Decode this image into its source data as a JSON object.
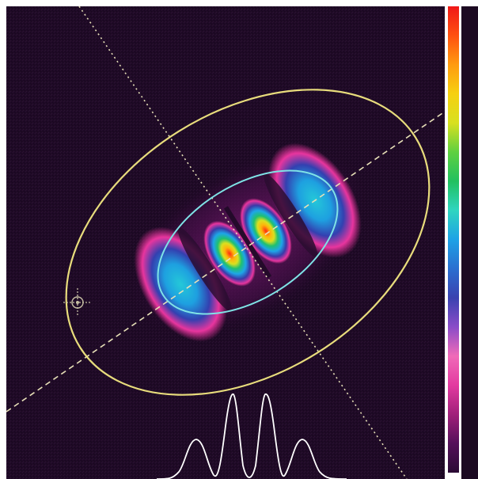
{
  "window": {
    "title": ""
  },
  "colors": {
    "background": "#1f0a26",
    "ellipse_outer": "#e8dc7c",
    "ellipse_inner": "#7fe3e6",
    "axis_line": "#e8e1b8",
    "profile_curve": "#ffffff",
    "crosshair": "#c8c0a4"
  },
  "colorbar": {
    "stops": [
      "#2a0a34",
      "#55105a",
      "#a0207a",
      "#e33aa0",
      "#f06ab8",
      "#8a4cc8",
      "#3a42b0",
      "#2b6fd0",
      "#1ea2e6",
      "#2fd5c0",
      "#22c060",
      "#5fd040",
      "#d8e020",
      "#f6d010",
      "#ff9b10",
      "#ff5010",
      "#f01818"
    ]
  },
  "icons": {
    "crosshair": "crosshair-icon"
  }
}
